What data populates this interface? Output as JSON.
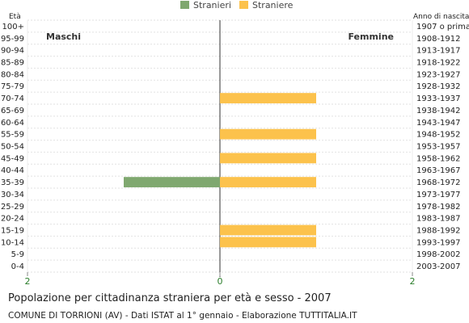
{
  "chart_data": {
    "type": "bar",
    "orientation": "horizontal-population-pyramid",
    "title": "Popolazione per cittadinanza straniera per età e sesso - 2007",
    "subtitle": "COMUNE DI TORRIONI (AV) - Dati ISTAT al 1° gennaio - Elaborazione TUTTITALIA.IT",
    "y_left_label": "Età",
    "y_right_label": "Anno di nascita",
    "left_side_label": "Maschi",
    "right_side_label": "Femmine",
    "xlim": [
      -2,
      2
    ],
    "x_tick_labels": [
      "2",
      "0",
      "2"
    ],
    "legend": [
      {
        "name": "Stranieri",
        "color": "#7fa86f"
      },
      {
        "name": "Straniere",
        "color": "#fcc24c"
      }
    ],
    "categories": [
      "100+",
      "95-99",
      "90-94",
      "85-89",
      "80-84",
      "75-79",
      "70-74",
      "65-69",
      "60-64",
      "55-59",
      "50-54",
      "45-49",
      "40-44",
      "35-39",
      "30-34",
      "25-29",
      "20-24",
      "15-19",
      "10-14",
      "5-9",
      "0-4"
    ],
    "birth_years": [
      "1907 o prima",
      "1908-1912",
      "1913-1917",
      "1918-1922",
      "1923-1927",
      "1928-1932",
      "1933-1937",
      "1938-1942",
      "1943-1947",
      "1948-1952",
      "1953-1957",
      "1958-1962",
      "1963-1967",
      "1968-1972",
      "1973-1977",
      "1978-1982",
      "1983-1987",
      "1988-1992",
      "1993-1997",
      "1998-2002",
      "2003-2007"
    ],
    "series": [
      {
        "name": "Stranieri",
        "values": [
          0,
          0,
          0,
          0,
          0,
          0,
          0,
          0,
          0,
          0,
          0,
          0,
          0,
          1,
          0,
          0,
          0,
          0,
          0,
          0,
          0
        ]
      },
      {
        "name": "Straniere",
        "values": [
          0,
          0,
          0,
          0,
          0,
          0,
          1,
          0,
          0,
          1,
          0,
          1,
          0,
          1,
          0,
          0,
          0,
          1,
          1,
          0,
          0
        ]
      }
    ]
  }
}
